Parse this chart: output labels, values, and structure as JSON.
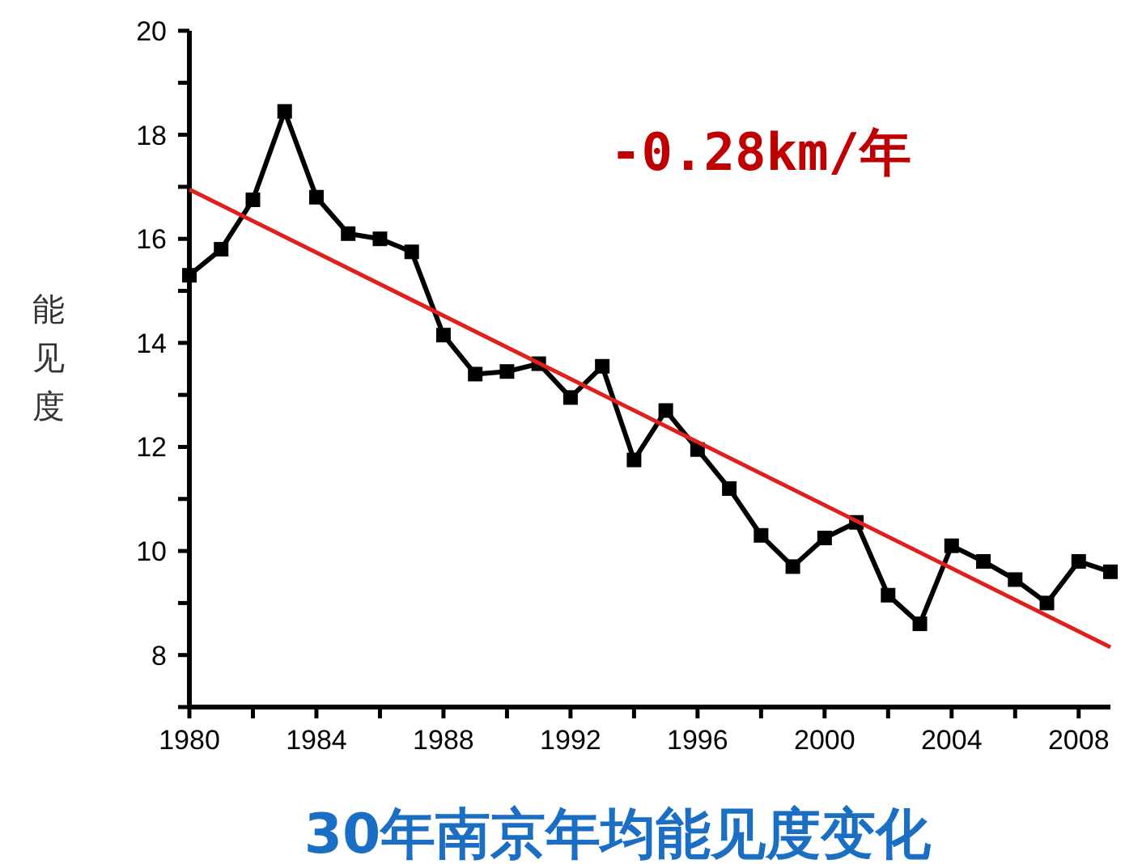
{
  "chart_data": {
    "type": "line",
    "title": "30年南京年均能见度变化",
    "ylabel": "能见度",
    "annotations": [
      "-0.28km/年"
    ],
    "x": [
      1980,
      1981,
      1982,
      1983,
      1984,
      1985,
      1986,
      1987,
      1988,
      1989,
      1990,
      1991,
      1992,
      1993,
      1994,
      1995,
      1996,
      1997,
      1998,
      1999,
      2000,
      2001,
      2002,
      2003,
      2004,
      2005,
      2006,
      2007,
      2008,
      2009
    ],
    "series": [
      {
        "color": "#000000",
        "marker": "square",
        "values": [
          15.3,
          15.8,
          16.75,
          18.45,
          16.8,
          16.1,
          16.0,
          15.75,
          14.15,
          13.4,
          13.45,
          13.6,
          12.95,
          13.55,
          11.75,
          12.7,
          11.95,
          11.2,
          10.3,
          9.7,
          10.25,
          10.55,
          9.15,
          8.6,
          10.1,
          9.8,
          9.45,
          9.0,
          9.8,
          9.6
        ]
      },
      {
        "type": "line",
        "color": "#e0201c",
        "marker": "none",
        "x": [
          1980,
          2009
        ],
        "values": [
          16.95,
          8.15
        ]
      }
    ],
    "xlim": [
      1980,
      2009
    ],
    "ylim": [
      7,
      20
    ],
    "xticks": [
      1980,
      {
        "value": 1982,
        "label": null
      },
      1984,
      {
        "value": 1986,
        "label": null
      },
      1988,
      {
        "value": 1990,
        "label": null
      },
      1992,
      {
        "value": 1994,
        "label": null
      },
      1996,
      {
        "value": 1998,
        "label": null
      },
      2000,
      {
        "value": 2002,
        "label": null
      },
      2004,
      {
        "value": 2006,
        "label": null
      },
      2008
    ],
    "yticks": [
      {
        "value": 7,
        "label": null
      },
      8,
      {
        "value": 9,
        "label": null
      },
      10,
      {
        "value": 11,
        "label": null
      },
      12,
      {
        "value": 13,
        "label": null
      },
      14,
      {
        "value": 15,
        "label": null
      },
      16,
      {
        "value": 17,
        "label": null
      },
      18,
      {
        "value": 19,
        "label": null
      },
      20
    ],
    "grid": false,
    "line_style": "solid"
  }
}
